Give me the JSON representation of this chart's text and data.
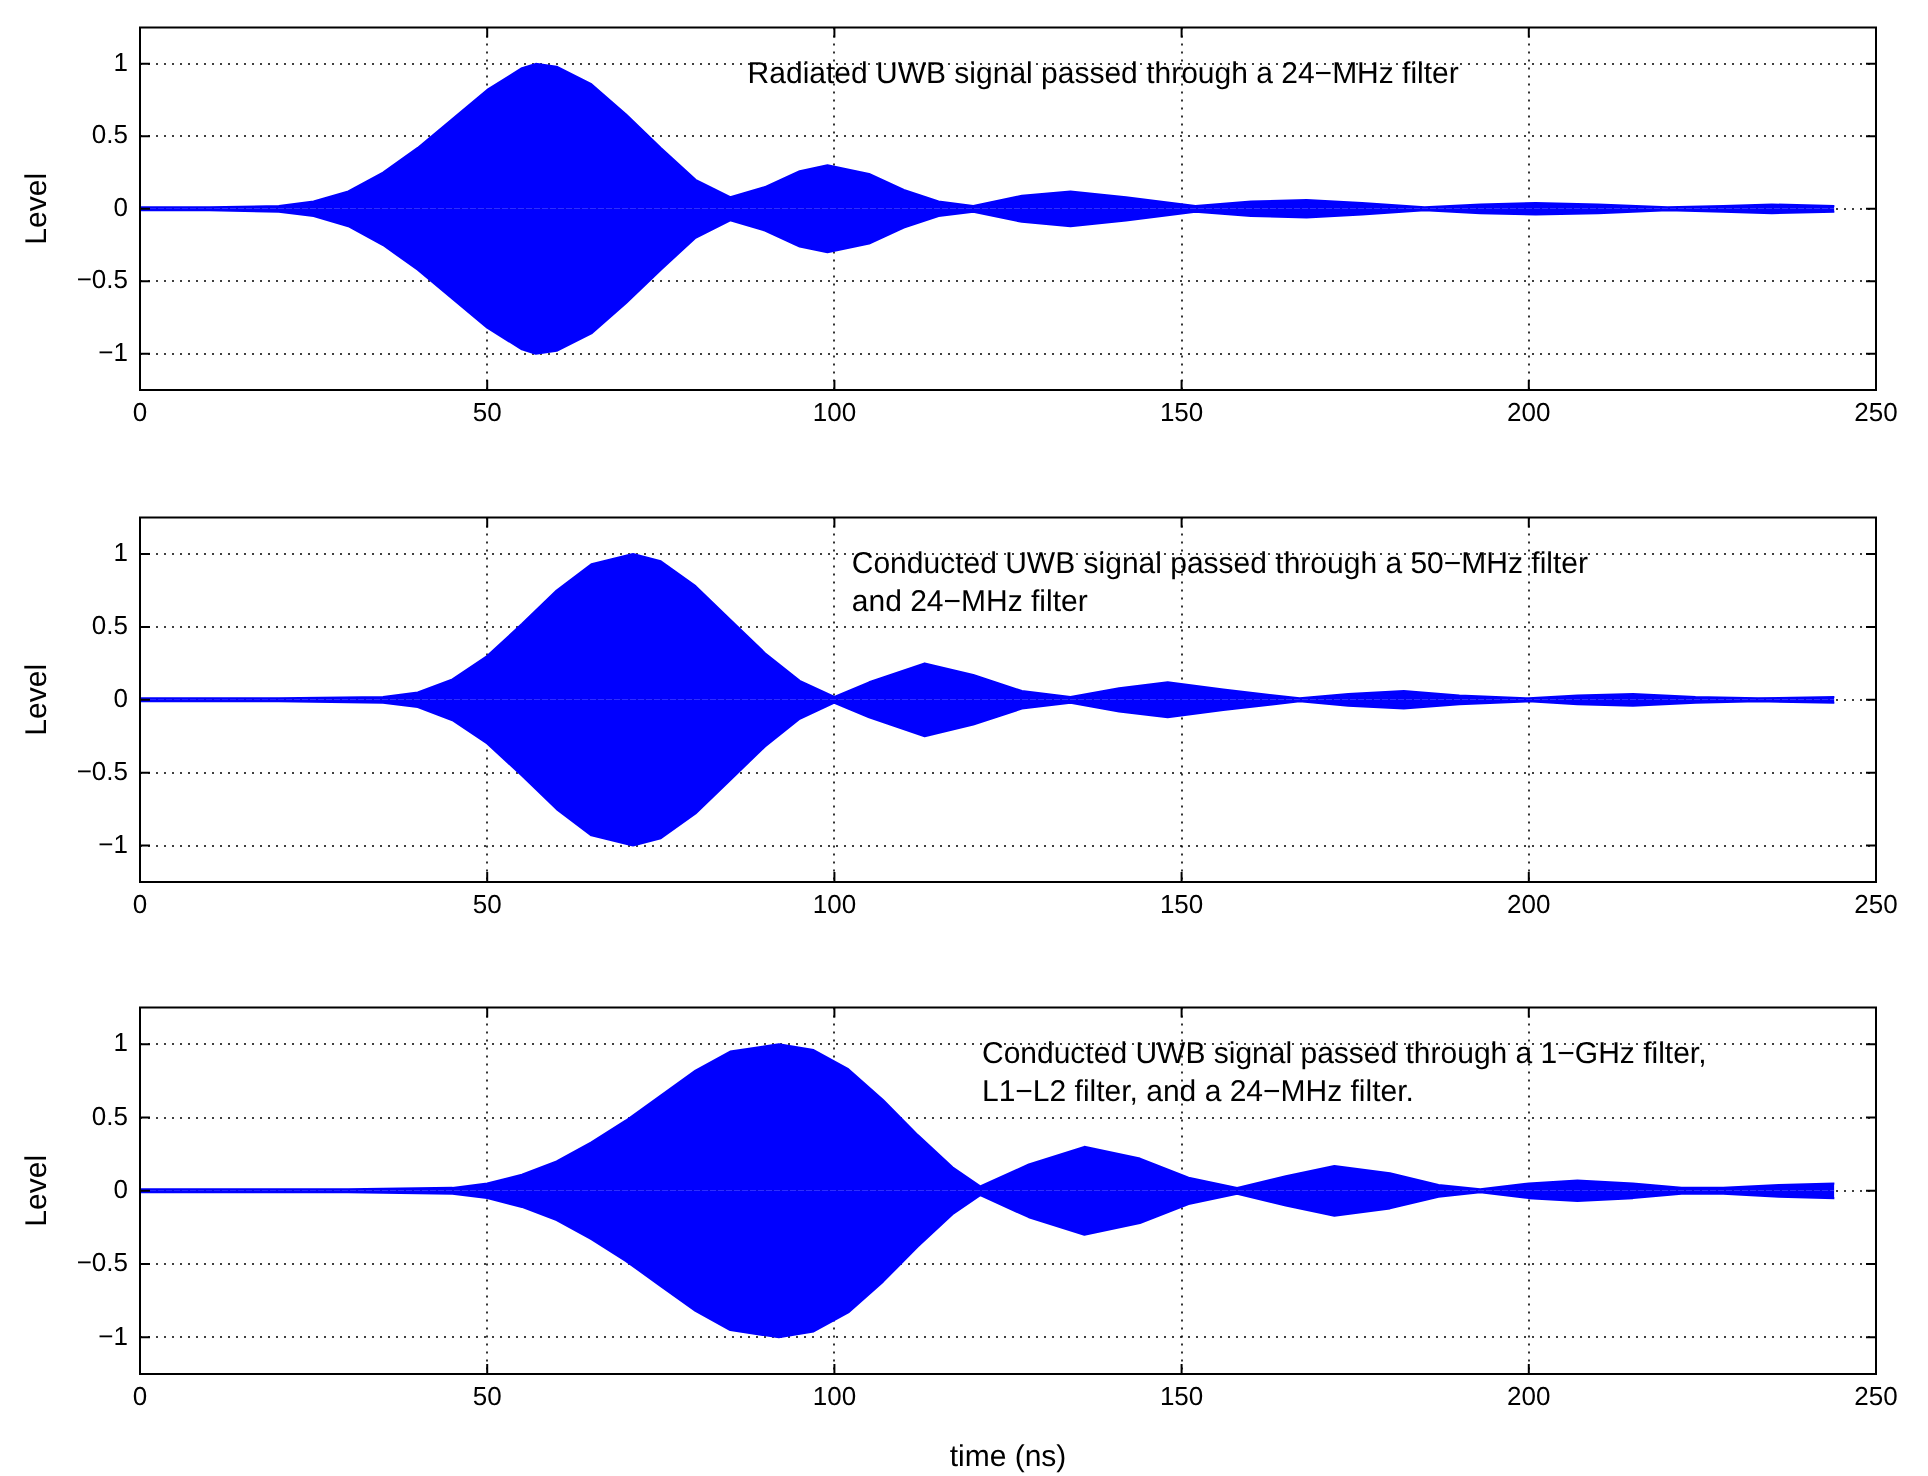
{
  "chart_data": [
    {
      "type": "area",
      "ylabel": "Level",
      "annotations": [
        "Radiated UWB signal passed through a 24−MHz filter"
      ],
      "xlim": [
        0,
        250
      ],
      "xticks": [
        0,
        50,
        100,
        150,
        200,
        250
      ],
      "ylim": [
        -1.25,
        1.25
      ],
      "yticks": [
        -1,
        -0.5,
        0,
        0.5,
        1
      ],
      "grid": true,
      "x": [
        0,
        10,
        20,
        25,
        30,
        35,
        40,
        45,
        50,
        55,
        57,
        60,
        65,
        70,
        75,
        80,
        85,
        90,
        95,
        99,
        105,
        110,
        115,
        120,
        127,
        134,
        142,
        152,
        160,
        168,
        176,
        185,
        193,
        201,
        210,
        220,
        228,
        235,
        244
      ],
      "series": [
        {
          "color": "#0000ff",
          "values": [
            0.01,
            0.01,
            0.02,
            0.05,
            0.12,
            0.25,
            0.42,
            0.62,
            0.82,
            0.97,
            1.0,
            0.98,
            0.86,
            0.65,
            0.42,
            0.2,
            0.08,
            0.15,
            0.26,
            0.3,
            0.24,
            0.13,
            0.05,
            0.02,
            0.09,
            0.12,
            0.08,
            0.02,
            0.05,
            0.06,
            0.04,
            0.01,
            0.03,
            0.04,
            0.03,
            0.01,
            0.02,
            0.03,
            0.02
          ]
        },
        {
          "color": "#0000ff",
          "values": [
            -0.01,
            -0.01,
            -0.02,
            -0.05,
            -0.12,
            -0.25,
            -0.42,
            -0.62,
            -0.82,
            -0.97,
            -1.0,
            -0.98,
            -0.86,
            -0.65,
            -0.42,
            -0.2,
            -0.08,
            -0.15,
            -0.26,
            -0.3,
            -0.24,
            -0.13,
            -0.05,
            -0.02,
            -0.09,
            -0.12,
            -0.08,
            -0.02,
            -0.05,
            -0.06,
            -0.04,
            -0.01,
            -0.03,
            -0.04,
            -0.03,
            -0.01,
            -0.02,
            -0.03,
            -0.02
          ]
        }
      ]
    },
    {
      "type": "area",
      "ylabel": "Level",
      "annotations": [
        "Conducted UWB signal passed through a 50−MHz filter\nand 24−MHz filter"
      ],
      "xlim": [
        0,
        250
      ],
      "xticks": [
        0,
        50,
        100,
        150,
        200,
        250
      ],
      "ylim": [
        -1.25,
        1.25
      ],
      "yticks": [
        -1,
        -0.5,
        0,
        0.5,
        1
      ],
      "grid": true,
      "x": [
        0,
        20,
        35,
        40,
        45,
        50,
        55,
        60,
        65,
        71,
        75,
        80,
        85,
        90,
        95,
        100,
        105,
        113,
        120,
        127,
        134,
        141,
        148,
        156,
        167,
        174,
        182,
        190,
        200,
        207,
        215,
        224,
        233,
        244
      ],
      "series": [
        {
          "color": "#0000ff",
          "values": [
            0.01,
            0.01,
            0.02,
            0.05,
            0.14,
            0.3,
            0.52,
            0.75,
            0.93,
            1.0,
            0.95,
            0.78,
            0.55,
            0.32,
            0.13,
            0.02,
            0.12,
            0.25,
            0.17,
            0.06,
            0.02,
            0.08,
            0.12,
            0.07,
            0.01,
            0.04,
            0.06,
            0.03,
            0.01,
            0.03,
            0.04,
            0.02,
            0.01,
            0.02
          ]
        },
        {
          "color": "#0000ff",
          "values": [
            -0.01,
            -0.01,
            -0.02,
            -0.05,
            -0.14,
            -0.3,
            -0.52,
            -0.75,
            -0.93,
            -1.0,
            -0.95,
            -0.78,
            -0.55,
            -0.32,
            -0.13,
            -0.02,
            -0.12,
            -0.25,
            -0.17,
            -0.06,
            -0.02,
            -0.08,
            -0.12,
            -0.07,
            -0.01,
            -0.04,
            -0.06,
            -0.03,
            -0.01,
            -0.03,
            -0.04,
            -0.02,
            -0.01,
            -0.02
          ]
        }
      ]
    },
    {
      "type": "area",
      "ylabel": "Level",
      "xlabel": "time (ns)",
      "annotations": [
        "Conducted UWB signal passed through a 1−GHz filter,\nL1−L2 filter, and a 24−MHz filter."
      ],
      "xlim": [
        0,
        250
      ],
      "xticks": [
        0,
        50,
        100,
        150,
        200,
        250
      ],
      "ylim": [
        -1.25,
        1.25
      ],
      "yticks": [
        -1,
        -0.5,
        0,
        0.5,
        1
      ],
      "grid": true,
      "x": [
        0,
        30,
        45,
        50,
        55,
        60,
        65,
        70,
        75,
        80,
        85,
        92,
        97,
        102,
        107,
        112,
        117,
        121,
        128,
        136,
        144,
        151,
        158,
        165,
        172,
        180,
        187,
        193,
        200,
        207,
        215,
        222,
        228,
        236,
        244
      ],
      "series": [
        {
          "color": "#0000ff",
          "values": [
            0.01,
            0.01,
            0.02,
            0.05,
            0.11,
            0.2,
            0.33,
            0.48,
            0.65,
            0.82,
            0.95,
            1.0,
            0.96,
            0.83,
            0.62,
            0.38,
            0.16,
            0.03,
            0.18,
            0.3,
            0.22,
            0.09,
            0.02,
            0.1,
            0.17,
            0.12,
            0.04,
            0.01,
            0.05,
            0.07,
            0.05,
            0.02,
            0.02,
            0.04,
            0.05
          ]
        },
        {
          "color": "#0000ff",
          "values": [
            -0.01,
            -0.01,
            -0.02,
            -0.05,
            -0.11,
            -0.2,
            -0.33,
            -0.48,
            -0.65,
            -0.82,
            -0.95,
            -1.0,
            -0.96,
            -0.83,
            -0.62,
            -0.38,
            -0.16,
            -0.03,
            -0.18,
            -0.3,
            -0.22,
            -0.09,
            -0.02,
            -0.1,
            -0.17,
            -0.12,
            -0.04,
            -0.01,
            -0.05,
            -0.07,
            -0.05,
            -0.02,
            -0.02,
            -0.04,
            -0.05
          ]
        }
      ]
    }
  ]
}
